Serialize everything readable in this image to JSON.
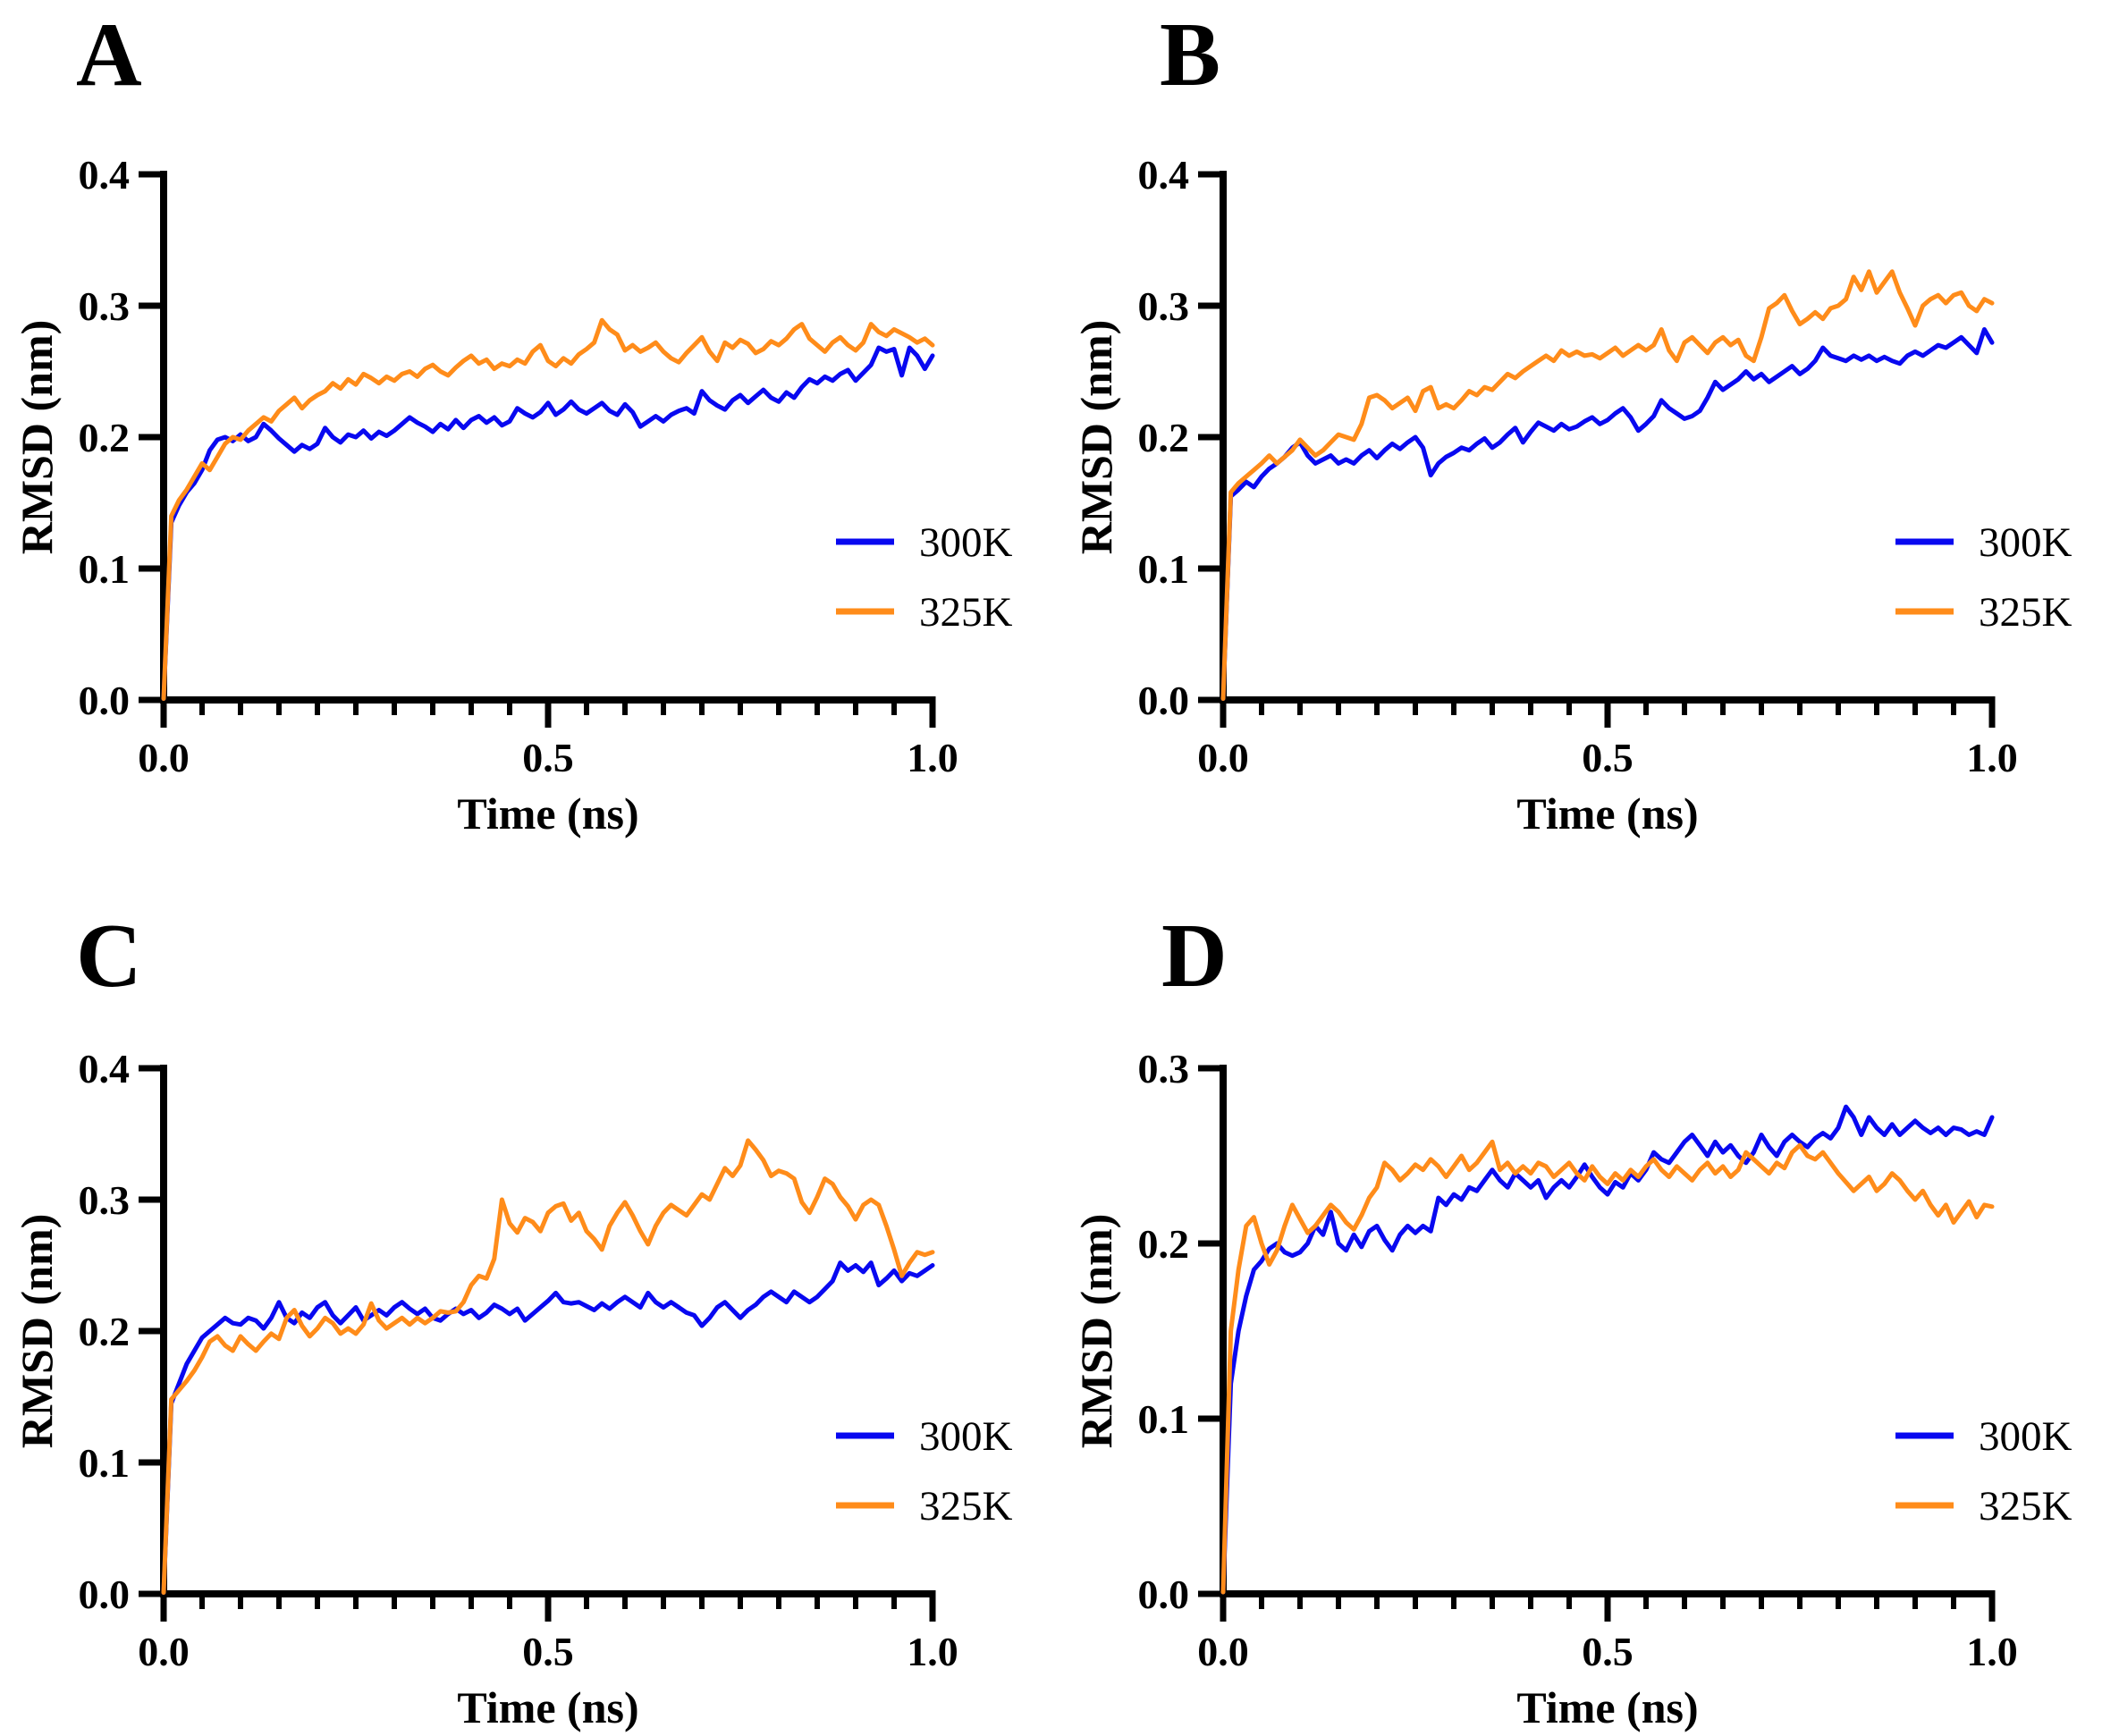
{
  "figure": {
    "background": "#ffffff",
    "axis_color": "#000000",
    "colors": {
      "series_300K": "#0808f0",
      "series_325K": "#ff8c1a"
    }
  },
  "chart_data": [
    {
      "type": "line",
      "panel_label": "A",
      "x_label": "Time (ns)",
      "y_label": "RMSD (nm)",
      "xlim": [
        0.0,
        1.0
      ],
      "ylim": [
        0.0,
        0.4
      ],
      "x_ticks": [
        "0.0",
        "0.5",
        "1.0"
      ],
      "y_ticks": [
        "0.0",
        "0.1",
        "0.2",
        "0.3",
        "0.4"
      ],
      "x_minor_tick_step": 0.05,
      "grid": false,
      "legend_position": "inside lower right",
      "x_start": 0.0,
      "x_step": 0.01,
      "series": [
        {
          "name": "300K",
          "color": "#0808f0",
          "y": [
            0.001,
            0.135,
            0.148,
            0.158,
            0.165,
            0.175,
            0.19,
            0.198,
            0.2,
            0.197,
            0.202,
            0.197,
            0.2,
            0.21,
            0.205,
            0.199,
            0.194,
            0.189,
            0.194,
            0.191,
            0.195,
            0.207,
            0.2,
            0.196,
            0.202,
            0.2,
            0.205,
            0.199,
            0.204,
            0.201,
            0.205,
            0.21,
            0.215,
            0.211,
            0.208,
            0.204,
            0.21,
            0.206,
            0.213,
            0.207,
            0.213,
            0.216,
            0.211,
            0.215,
            0.209,
            0.212,
            0.222,
            0.218,
            0.215,
            0.219,
            0.226,
            0.217,
            0.221,
            0.227,
            0.221,
            0.218,
            0.222,
            0.226,
            0.22,
            0.217,
            0.225,
            0.219,
            0.208,
            0.212,
            0.216,
            0.212,
            0.217,
            0.22,
            0.222,
            0.218,
            0.235,
            0.228,
            0.224,
            0.221,
            0.228,
            0.232,
            0.226,
            0.231,
            0.236,
            0.23,
            0.227,
            0.234,
            0.23,
            0.238,
            0.244,
            0.241,
            0.246,
            0.243,
            0.248,
            0.251,
            0.243,
            0.249,
            0.255,
            0.268,
            0.265,
            0.267,
            0.247,
            0.268,
            0.262,
            0.252,
            0.262
          ]
        },
        {
          "name": "325K",
          "color": "#ff8c1a",
          "y": [
            0.001,
            0.14,
            0.152,
            0.16,
            0.17,
            0.18,
            0.175,
            0.185,
            0.195,
            0.2,
            0.198,
            0.205,
            0.21,
            0.215,
            0.212,
            0.22,
            0.225,
            0.23,
            0.222,
            0.228,
            0.232,
            0.235,
            0.241,
            0.237,
            0.244,
            0.24,
            0.248,
            0.245,
            0.241,
            0.246,
            0.243,
            0.248,
            0.25,
            0.246,
            0.252,
            0.255,
            0.25,
            0.247,
            0.253,
            0.258,
            0.262,
            0.256,
            0.259,
            0.252,
            0.256,
            0.254,
            0.259,
            0.256,
            0.265,
            0.27,
            0.258,
            0.254,
            0.26,
            0.256,
            0.263,
            0.267,
            0.272,
            0.289,
            0.282,
            0.278,
            0.266,
            0.27,
            0.265,
            0.268,
            0.272,
            0.265,
            0.26,
            0.257,
            0.264,
            0.27,
            0.276,
            0.265,
            0.258,
            0.272,
            0.268,
            0.274,
            0.271,
            0.264,
            0.267,
            0.273,
            0.27,
            0.275,
            0.282,
            0.286,
            0.275,
            0.27,
            0.265,
            0.272,
            0.276,
            0.27,
            0.266,
            0.272,
            0.286,
            0.28,
            0.277,
            0.282,
            0.279,
            0.276,
            0.272,
            0.275,
            0.27
          ]
        }
      ]
    },
    {
      "type": "line",
      "panel_label": "B",
      "x_label": "Time (ns)",
      "y_label": "RMSD (nm)",
      "xlim": [
        0.0,
        1.0
      ],
      "ylim": [
        0.0,
        0.4
      ],
      "x_ticks": [
        "0.0",
        "0.5",
        "1.0"
      ],
      "y_ticks": [
        "0.0",
        "0.1",
        "0.2",
        "0.3",
        "0.4"
      ],
      "x_minor_tick_step": 0.05,
      "grid": false,
      "legend_position": "inside lower right",
      "x_start": 0.0,
      "x_step": 0.01,
      "series": [
        {
          "name": "300K",
          "color": "#0808f0",
          "y": [
            0.001,
            0.155,
            0.16,
            0.166,
            0.162,
            0.17,
            0.176,
            0.18,
            0.185,
            0.192,
            0.196,
            0.186,
            0.18,
            0.183,
            0.186,
            0.18,
            0.183,
            0.18,
            0.186,
            0.19,
            0.184,
            0.19,
            0.195,
            0.191,
            0.196,
            0.2,
            0.192,
            0.171,
            0.18,
            0.185,
            0.188,
            0.192,
            0.19,
            0.195,
            0.199,
            0.192,
            0.196,
            0.202,
            0.207,
            0.196,
            0.204,
            0.211,
            0.208,
            0.205,
            0.21,
            0.206,
            0.208,
            0.212,
            0.215,
            0.21,
            0.213,
            0.218,
            0.222,
            0.215,
            0.205,
            0.21,
            0.216,
            0.228,
            0.222,
            0.218,
            0.214,
            0.216,
            0.22,
            0.23,
            0.242,
            0.236,
            0.24,
            0.244,
            0.25,
            0.244,
            0.248,
            0.242,
            0.246,
            0.25,
            0.254,
            0.248,
            0.252,
            0.258,
            0.268,
            0.262,
            0.26,
            0.258,
            0.262,
            0.259,
            0.262,
            0.258,
            0.261,
            0.258,
            0.256,
            0.262,
            0.265,
            0.262,
            0.266,
            0.27,
            0.268,
            0.272,
            0.276,
            0.27,
            0.264,
            0.282,
            0.272
          ]
        },
        {
          "name": "325K",
          "color": "#ff8c1a",
          "y": [
            0.001,
            0.158,
            0.165,
            0.17,
            0.175,
            0.18,
            0.186,
            0.18,
            0.185,
            0.19,
            0.198,
            0.192,
            0.186,
            0.19,
            0.196,
            0.202,
            0.2,
            0.198,
            0.21,
            0.23,
            0.232,
            0.228,
            0.222,
            0.226,
            0.23,
            0.22,
            0.235,
            0.238,
            0.222,
            0.225,
            0.222,
            0.228,
            0.235,
            0.232,
            0.238,
            0.236,
            0.242,
            0.248,
            0.245,
            0.25,
            0.254,
            0.258,
            0.262,
            0.258,
            0.266,
            0.262,
            0.265,
            0.262,
            0.263,
            0.26,
            0.264,
            0.268,
            0.262,
            0.266,
            0.27,
            0.266,
            0.27,
            0.282,
            0.266,
            0.258,
            0.272,
            0.276,
            0.27,
            0.264,
            0.272,
            0.276,
            0.27,
            0.274,
            0.262,
            0.258,
            0.276,
            0.298,
            0.302,
            0.308,
            0.296,
            0.286,
            0.29,
            0.295,
            0.29,
            0.298,
            0.3,
            0.305,
            0.322,
            0.312,
            0.326,
            0.31,
            0.318,
            0.326,
            0.31,
            0.298,
            0.285,
            0.3,
            0.305,
            0.308,
            0.302,
            0.308,
            0.31,
            0.3,
            0.296,
            0.305,
            0.302
          ]
        }
      ]
    },
    {
      "type": "line",
      "panel_label": "C",
      "x_label": "Time (ns)",
      "y_label": "RMSD (nm)",
      "xlim": [
        0.0,
        1.0
      ],
      "ylim": [
        0.0,
        0.4
      ],
      "x_ticks": [
        "0.0",
        "0.5",
        "1.0"
      ],
      "y_ticks": [
        "0.0",
        "0.1",
        "0.2",
        "0.3",
        "0.4"
      ],
      "x_minor_tick_step": 0.05,
      "grid": false,
      "legend_position": "inside lower right",
      "x_start": 0.0,
      "x_step": 0.01,
      "series": [
        {
          "name": "300K",
          "color": "#0808f0",
          "y": [
            0.001,
            0.145,
            0.16,
            0.175,
            0.185,
            0.195,
            0.2,
            0.205,
            0.21,
            0.206,
            0.205,
            0.21,
            0.208,
            0.202,
            0.21,
            0.222,
            0.21,
            0.206,
            0.214,
            0.21,
            0.218,
            0.222,
            0.212,
            0.206,
            0.212,
            0.218,
            0.208,
            0.212,
            0.216,
            0.212,
            0.218,
            0.222,
            0.217,
            0.213,
            0.217,
            0.21,
            0.208,
            0.213,
            0.217,
            0.213,
            0.216,
            0.21,
            0.214,
            0.22,
            0.217,
            0.213,
            0.217,
            0.208,
            0.213,
            0.218,
            0.223,
            0.229,
            0.222,
            0.221,
            0.222,
            0.219,
            0.216,
            0.221,
            0.217,
            0.222,
            0.226,
            0.222,
            0.218,
            0.229,
            0.222,
            0.218,
            0.222,
            0.218,
            0.214,
            0.212,
            0.204,
            0.21,
            0.218,
            0.222,
            0.216,
            0.21,
            0.216,
            0.22,
            0.226,
            0.23,
            0.226,
            0.222,
            0.23,
            0.226,
            0.222,
            0.226,
            0.232,
            0.238,
            0.252,
            0.246,
            0.25,
            0.245,
            0.252,
            0.235,
            0.24,
            0.246,
            0.238,
            0.244,
            0.242,
            0.246,
            0.25
          ]
        },
        {
          "name": "325K",
          "color": "#ff8c1a",
          "y": [
            0.001,
            0.148,
            0.155,
            0.162,
            0.17,
            0.18,
            0.192,
            0.196,
            0.189,
            0.185,
            0.196,
            0.19,
            0.185,
            0.192,
            0.198,
            0.194,
            0.21,
            0.216,
            0.204,
            0.196,
            0.202,
            0.21,
            0.206,
            0.198,
            0.202,
            0.198,
            0.205,
            0.221,
            0.208,
            0.202,
            0.206,
            0.21,
            0.205,
            0.21,
            0.206,
            0.21,
            0.215,
            0.214,
            0.215,
            0.222,
            0.235,
            0.242,
            0.24,
            0.255,
            0.3,
            0.282,
            0.275,
            0.286,
            0.283,
            0.276,
            0.29,
            0.295,
            0.297,
            0.284,
            0.29,
            0.276,
            0.27,
            0.262,
            0.28,
            0.29,
            0.298,
            0.288,
            0.276,
            0.266,
            0.28,
            0.29,
            0.296,
            0.292,
            0.288,
            0.296,
            0.304,
            0.3,
            0.312,
            0.324,
            0.318,
            0.326,
            0.345,
            0.338,
            0.33,
            0.318,
            0.322,
            0.32,
            0.316,
            0.298,
            0.29,
            0.302,
            0.316,
            0.312,
            0.302,
            0.295,
            0.285,
            0.296,
            0.3,
            0.296,
            0.28,
            0.262,
            0.242,
            0.252,
            0.26,
            0.258,
            0.26
          ]
        }
      ]
    },
    {
      "type": "line",
      "panel_label": "D",
      "x_label": "Time (ns)",
      "y_label": "RMSD (nm)",
      "xlim": [
        0.0,
        1.0
      ],
      "ylim": [
        0.0,
        0.3
      ],
      "x_ticks": [
        "0.0",
        "0.5",
        "1.0"
      ],
      "y_ticks": [
        "0.0",
        "0.1",
        "0.2",
        "0.3"
      ],
      "x_minor_tick_step": 0.05,
      "grid": false,
      "legend_position": "inside lower right",
      "x_start": 0.0,
      "x_step": 0.01,
      "series": [
        {
          "name": "300K",
          "color": "#0808f0",
          "y": [
            0.001,
            0.12,
            0.15,
            0.17,
            0.185,
            0.19,
            0.197,
            0.2,
            0.195,
            0.193,
            0.195,
            0.2,
            0.21,
            0.205,
            0.218,
            0.2,
            0.196,
            0.205,
            0.198,
            0.207,
            0.21,
            0.202,
            0.196,
            0.205,
            0.21,
            0.206,
            0.21,
            0.207,
            0.226,
            0.222,
            0.228,
            0.225,
            0.232,
            0.23,
            0.236,
            0.242,
            0.236,
            0.232,
            0.24,
            0.236,
            0.232,
            0.236,
            0.226,
            0.232,
            0.236,
            0.232,
            0.238,
            0.245,
            0.238,
            0.232,
            0.228,
            0.235,
            0.232,
            0.24,
            0.236,
            0.242,
            0.252,
            0.248,
            0.246,
            0.252,
            0.258,
            0.262,
            0.256,
            0.25,
            0.258,
            0.252,
            0.256,
            0.25,
            0.246,
            0.252,
            0.262,
            0.255,
            0.25,
            0.258,
            0.262,
            0.258,
            0.255,
            0.26,
            0.263,
            0.26,
            0.266,
            0.278,
            0.272,
            0.262,
            0.272,
            0.266,
            0.262,
            0.268,
            0.262,
            0.266,
            0.27,
            0.266,
            0.263,
            0.266,
            0.262,
            0.266,
            0.265,
            0.262,
            0.264,
            0.262,
            0.272
          ]
        },
        {
          "name": "325K",
          "color": "#ff8c1a",
          "y": [
            0.001,
            0.15,
            0.185,
            0.21,
            0.215,
            0.2,
            0.188,
            0.196,
            0.21,
            0.222,
            0.214,
            0.206,
            0.21,
            0.216,
            0.222,
            0.218,
            0.212,
            0.208,
            0.216,
            0.226,
            0.232,
            0.246,
            0.242,
            0.236,
            0.24,
            0.245,
            0.242,
            0.248,
            0.244,
            0.238,
            0.244,
            0.25,
            0.242,
            0.246,
            0.252,
            0.258,
            0.242,
            0.246,
            0.24,
            0.244,
            0.24,
            0.246,
            0.244,
            0.238,
            0.242,
            0.246,
            0.24,
            0.236,
            0.244,
            0.238,
            0.234,
            0.24,
            0.236,
            0.242,
            0.238,
            0.244,
            0.248,
            0.242,
            0.238,
            0.244,
            0.24,
            0.236,
            0.242,
            0.246,
            0.24,
            0.244,
            0.238,
            0.242,
            0.252,
            0.248,
            0.244,
            0.24,
            0.246,
            0.243,
            0.252,
            0.256,
            0.25,
            0.248,
            0.252,
            0.246,
            0.24,
            0.235,
            0.23,
            0.234,
            0.238,
            0.23,
            0.234,
            0.24,
            0.236,
            0.23,
            0.225,
            0.23,
            0.222,
            0.216,
            0.222,
            0.212,
            0.218,
            0.224,
            0.215,
            0.222,
            0.221
          ]
        }
      ]
    }
  ]
}
